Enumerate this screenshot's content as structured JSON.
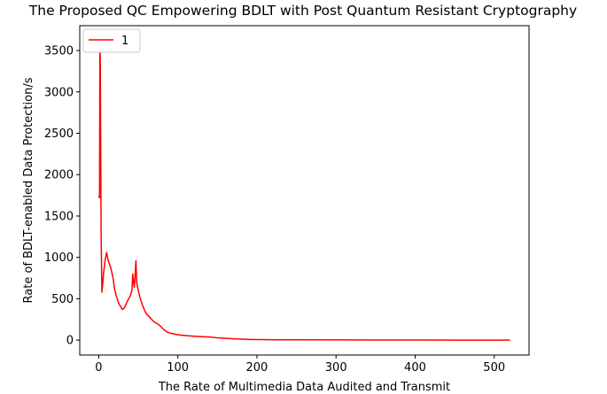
{
  "chart_data": {
    "type": "line",
    "title": "The Proposed QC Empowering BDLT with Post Quantum Resistant Cryptography",
    "xlabel": "The Rate of Multimedia Data Audited and Transmit",
    "ylabel": "Rate of BDLT-enabled Data Protection/s",
    "xlim": [
      -24,
      544
    ],
    "ylim": [
      -180,
      3800
    ],
    "xticks": [
      0,
      100,
      200,
      300,
      400,
      500
    ],
    "yticks": [
      0,
      500,
      1000,
      1500,
      2000,
      2500,
      3000,
      3500
    ],
    "grid": false,
    "legend": {
      "placement": "upper-left"
    },
    "series": [
      {
        "name": "1",
        "color": "#ff0000",
        "points": [
          [
            0,
            1740
          ],
          [
            1,
            1720
          ],
          [
            1.5,
            3720
          ],
          [
            2,
            3300
          ],
          [
            3,
            1300
          ],
          [
            4,
            580
          ],
          [
            5,
            680
          ],
          [
            6,
            800
          ],
          [
            7,
            880
          ],
          [
            8,
            960
          ],
          [
            10,
            1060
          ],
          [
            12,
            960
          ],
          [
            15,
            880
          ],
          [
            18,
            760
          ],
          [
            20,
            620
          ],
          [
            22,
            540
          ],
          [
            25,
            450
          ],
          [
            28,
            400
          ],
          [
            30,
            370
          ],
          [
            32,
            385
          ],
          [
            34,
            420
          ],
          [
            36,
            470
          ],
          [
            38,
            500
          ],
          [
            40,
            540
          ],
          [
            42,
            600
          ],
          [
            43,
            800
          ],
          [
            44,
            700
          ],
          [
            45,
            640
          ],
          [
            46,
            790
          ],
          [
            47,
            960
          ],
          [
            48,
            700
          ],
          [
            50,
            600
          ],
          [
            52,
            520
          ],
          [
            55,
            430
          ],
          [
            58,
            360
          ],
          [
            60,
            320
          ],
          [
            63,
            290
          ],
          [
            66,
            260
          ],
          [
            70,
            220
          ],
          [
            74,
            200
          ],
          [
            78,
            170
          ],
          [
            82,
            130
          ],
          [
            86,
            100
          ],
          [
            90,
            85
          ],
          [
            95,
            75
          ],
          [
            100,
            65
          ],
          [
            110,
            55
          ],
          [
            120,
            48
          ],
          [
            130,
            42
          ],
          [
            140,
            38
          ],
          [
            150,
            28
          ],
          [
            160,
            22
          ],
          [
            170,
            16
          ],
          [
            180,
            12
          ],
          [
            190,
            9
          ],
          [
            200,
            7
          ],
          [
            225,
            5
          ],
          [
            250,
            4
          ],
          [
            300,
            3
          ],
          [
            350,
            2
          ],
          [
            400,
            2
          ],
          [
            450,
            1
          ],
          [
            500,
            1
          ],
          [
            520,
            1
          ]
        ]
      }
    ]
  }
}
